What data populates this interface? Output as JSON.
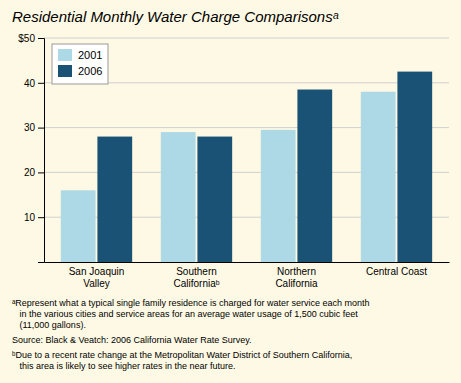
{
  "chart_data": {
    "type": "bar",
    "title": "Residential Monthly Water Charge Comparisonsᵃ",
    "categories": [
      "San Joaquin\nValley",
      "Southern\nCaliforniaᵇ",
      "Northern\nCalifornia",
      "Central Coast"
    ],
    "series": [
      {
        "name": "2001",
        "color": "#add8e6",
        "values": [
          16,
          29,
          29.5,
          38
        ]
      },
      {
        "name": "2006",
        "color": "#1a5276",
        "values": [
          28,
          28,
          38.5,
          42.5
        ]
      }
    ],
    "ylim": [
      0,
      50
    ],
    "yticks": [
      10,
      20,
      30,
      40,
      {
        "value": 50,
        "label": "$50"
      }
    ],
    "grid": true,
    "legend": "upper left",
    "annotations": [
      "ᵃRepresent what a typical single family residence is charged for water service each month\n   in the various cities and service areas for an average water usage of 1,500 cubic feet\n   (11,000 gallons).",
      "Source: Black & Veatch: 2006 California Water Rate Survey.",
      "ᵇDue to a recent rate change at the Metropolitan Water District of Southern California,\n   this area is likely to see higher rates in the near future."
    ]
  }
}
